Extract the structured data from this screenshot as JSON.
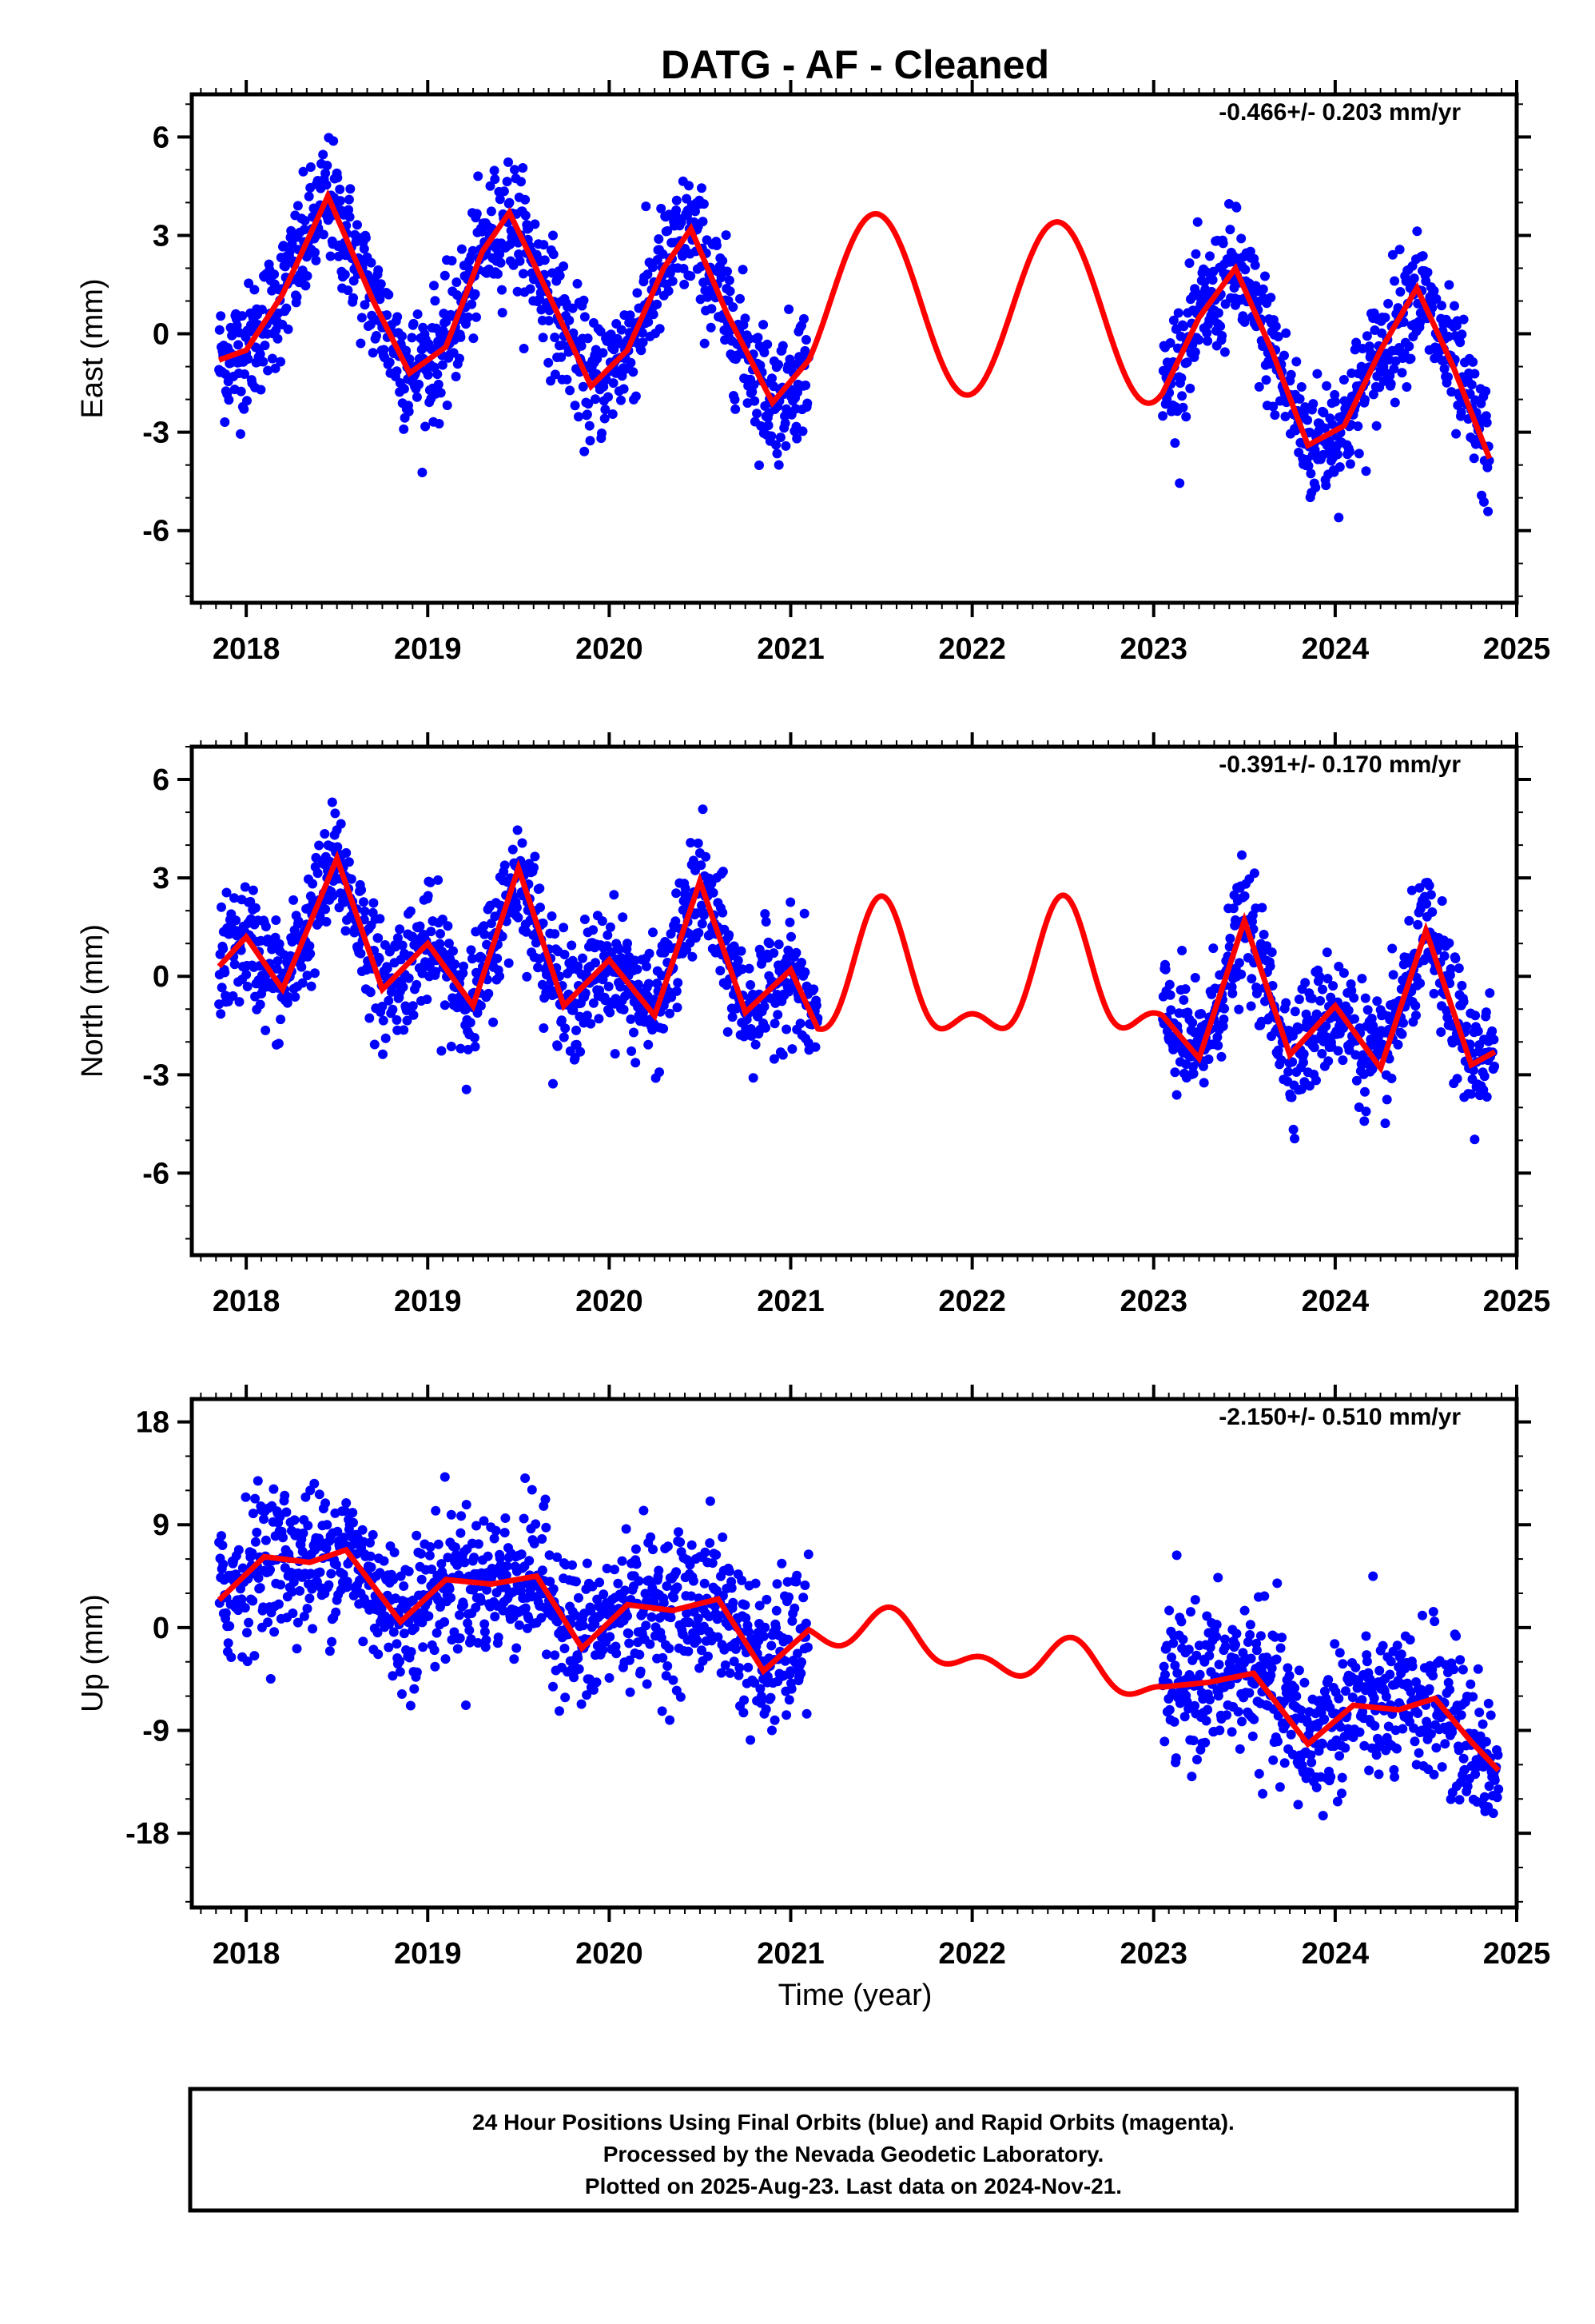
{
  "title": "DATG  - AF - Cleaned",
  "x_axis_label": "Time (year)",
  "x_ticks": [
    "2018",
    "2019",
    "2020",
    "2021",
    "2022",
    "2023",
    "2024",
    "2025"
  ],
  "footer": {
    "line1": "24 Hour Positions Using Final Orbits (blue) and Rapid Orbits (magenta).",
    "line2": "Processed by the Nevada Geodetic Laboratory.",
    "line3": "Plotted on 2025-Aug-23. Last data on 2024-Nov-21."
  },
  "colors": {
    "points": "#0000ff",
    "fit": "#ff0000",
    "frame": "#000000"
  },
  "chart_data": [
    {
      "type": "scatter",
      "component": "east",
      "ylabel": "East (mm)",
      "rate": "-0.466+/- 0.203 mm/yr",
      "xlim": [
        2017.7,
        2025.0
      ],
      "ylim": [
        -8.2,
        7.3
      ],
      "yticks": [
        6,
        3,
        0,
        -3,
        -6
      ],
      "ytick_labels": [
        "6",
        "3",
        "0",
        "-3",
        "-6"
      ],
      "seasonal": {
        "amplitude": 2.7,
        "offset": -0.1,
        "phase_peak": 0.47,
        "trend": -0.47,
        "t0": 2021.3
      },
      "series": [
        {
          "x": [
            2017.85,
            2018.0,
            2018.2,
            2018.45,
            2018.7,
            2018.9,
            2019.1,
            2019.3,
            2019.45,
            2019.7,
            2019.9,
            2020.1,
            2020.3,
            2020.45,
            2020.65,
            2020.9,
            2021.1
          ],
          "y": [
            -0.8,
            -0.5,
            1.2,
            4.2,
            1.0,
            -1.2,
            -0.4,
            2.5,
            3.7,
            0.8,
            -1.6,
            -0.5,
            2.0,
            3.2,
            0.6,
            -2.1,
            -0.8
          ]
        },
        {
          "x": [
            2023.05,
            2023.25,
            2023.45,
            2023.65,
            2023.85,
            2024.05,
            2024.25,
            2024.45,
            2024.65,
            2024.85
          ],
          "y": [
            -1.8,
            0.5,
            2.0,
            -0.5,
            -3.4,
            -2.8,
            -0.5,
            1.4,
            -1.0,
            -3.8
          ]
        }
      ]
    },
    {
      "type": "scatter",
      "component": "north",
      "ylabel": "North (mm)",
      "rate": "-0.391+/- 0.170 mm/yr",
      "xlim": [
        2017.7,
        2025.0
      ],
      "ylim": [
        -8.5,
        7.0
      ],
      "yticks": [
        6,
        3,
        0,
        -3,
        -6
      ],
      "ytick_labels": [
        "6",
        "3",
        "0",
        "-3",
        "-6"
      ],
      "seasonal": {
        "amplitude": 1.8,
        "amp2": 0.9,
        "offset": -0.1,
        "phase_peak": 0.5,
        "trend": -0.39,
        "t0": 2021.3
      },
      "series": [
        {
          "x": [
            2017.85,
            2018.0,
            2018.2,
            2018.5,
            2018.75,
            2019.0,
            2019.25,
            2019.5,
            2019.75,
            2020.0,
            2020.25,
            2020.5,
            2020.75,
            2021.0,
            2021.15
          ],
          "y": [
            0.3,
            1.2,
            -0.4,
            3.6,
            -0.4,
            1.0,
            -0.9,
            3.3,
            -0.9,
            0.5,
            -1.2,
            2.9,
            -1.1,
            0.2,
            -1.6
          ]
        },
        {
          "x": [
            2023.05,
            2023.25,
            2023.5,
            2023.75,
            2024.0,
            2024.25,
            2024.5,
            2024.75,
            2024.88
          ],
          "y": [
            -1.2,
            -2.5,
            1.7,
            -2.4,
            -0.9,
            -2.8,
            1.4,
            -2.7,
            -2.3
          ]
        }
      ]
    },
    {
      "type": "scatter",
      "component": "up",
      "ylabel": "Up (mm)",
      "rate": "-2.150+/- 0.510 mm/yr",
      "xlim": [
        2017.7,
        2025.0
      ],
      "ylim": [
        -24.5,
        20.0
      ],
      "yticks": [
        18,
        9,
        0,
        -9,
        -18
      ],
      "ytick_labels": [
        "18",
        "9",
        "0",
        "-9",
        "-18"
      ],
      "seasonal": {
        "amplitude": 1.5,
        "amp2": 1.2,
        "offset": -0.5,
        "phase_peak": 0.55,
        "trend": -2.15,
        "t0": 2021.3
      },
      "series": [
        {
          "x": [
            2017.85,
            2018.1,
            2018.35,
            2018.55,
            2018.85,
            2019.1,
            2019.35,
            2019.6,
            2019.85,
            2020.1,
            2020.35,
            2020.6,
            2020.85,
            2021.1
          ],
          "y": [
            2.4,
            6.2,
            5.7,
            6.8,
            0.5,
            4.2,
            3.8,
            4.5,
            -1.8,
            2.0,
            1.5,
            2.5,
            -3.8,
            -0.2
          ]
        },
        {
          "x": [
            2023.05,
            2023.3,
            2023.55,
            2023.85,
            2024.1,
            2024.35,
            2024.55,
            2024.75,
            2024.9
          ],
          "y": [
            -5.2,
            -4.8,
            -4.0,
            -10.2,
            -6.8,
            -7.2,
            -6.2,
            -10.0,
            -12.5
          ]
        }
      ]
    }
  ]
}
